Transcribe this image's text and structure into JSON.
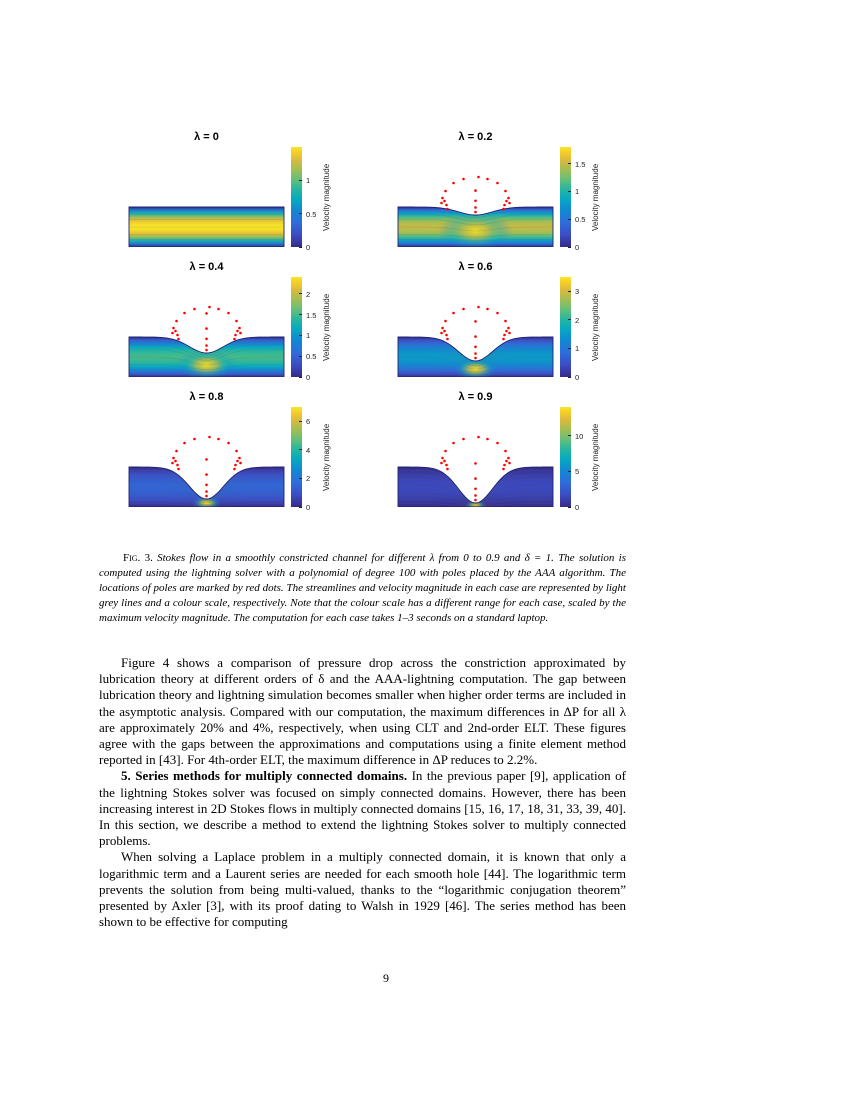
{
  "page": {
    "number": "9"
  },
  "figure": {
    "caption_lead": "Fig. 3.",
    "caption_text": " Stokes flow in a smoothly constricted channel for different λ from 0 to 0.9 and δ = 1. The solution is computed using the lightning solver with a polynomial of degree 100 with poles placed by the AAA algorithm. The locations of poles are marked by red dots. The streamlines and velocity magnitude in each case are represented by light grey lines and a colour scale, respectively. Note that the colour scale has a different range for each case, scaled by the maximum velocity magnitude. The computation for each case takes 1–3 seconds on a standard laptop."
  },
  "body": {
    "paragraphs": [
      {
        "text": "Figure 4 shows a comparison of pressure drop across the constriction approximated by lubrication theory at different orders of δ and the AAA-lightning computation. The gap between lubrication theory and lightning simulation becomes smaller when higher order terms are included in the asymptotic analysis. Compared with our computation, the maximum differences in ΔP for all λ are approximately 20% and 4%, respectively, when using CLT and 2nd-order ELT. These figures agree with the gaps between the approximations and computations using a finite element method reported in [43]. For 4th-order ELT, the maximum difference in ΔP reduces to 2.2%."
      },
      {
        "lead": "5. Series methods for multiply connected domains.",
        "text": " In the previous paper [9], application of the lightning Stokes solver was focused on simply connected domains. However, there has been increasing interest in 2D Stokes flows in multiply connected domains [15, 16, 17, 18, 31, 33, 39, 40]. In this section, we describe a method to extend the lightning Stokes solver to multiply connected problems."
      },
      {
        "text": "When solving a Laplace problem in a multiply connected domain, it is known that only a logarithmic term and a Laurent series are needed for each smooth hole [44]. The logarithmic term prevents the solution from being multi-valued, thanks to the “logarithmic conjugation theorem” presented by Axler [3], with its proof dating to Walsh in 1929 [46]. The series method has been shown to be effective for computing"
      }
    ]
  },
  "colors": {
    "pole_dot": "#ff0000",
    "boundary": "#1f2470",
    "streamline": "#666666",
    "parula": [
      [
        0,
        "#352a87"
      ],
      [
        0.12,
        "#3c4cc3"
      ],
      [
        0.25,
        "#2d6edb"
      ],
      [
        0.37,
        "#1189d1"
      ],
      [
        0.48,
        "#07a9c2"
      ],
      [
        0.58,
        "#27b79e"
      ],
      [
        0.68,
        "#68bf77"
      ],
      [
        0.78,
        "#a6be51"
      ],
      [
        0.87,
        "#d9ba3e"
      ],
      [
        0.94,
        "#f3cc2a"
      ],
      [
        1,
        "#f9e726"
      ]
    ]
  },
  "chart_data": [
    {
      "type": "heatmap",
      "title": "λ = 0",
      "lambda": 0,
      "delta": 1,
      "colorbar_label": "Velocity magnitude",
      "colorbar_ticks": [
        0,
        0.5,
        1
      ],
      "colorbar_range": [
        0,
        1.5
      ],
      "max_velocity": 1.5,
      "poles_marked": false,
      "description": "straight channel, Poiseuille flow, yellow fast core at centreline"
    },
    {
      "type": "heatmap",
      "title": "λ = 0.2",
      "lambda": 0.2,
      "delta": 1,
      "colorbar_label": "Velocity magnitude",
      "colorbar_ticks": [
        0,
        0.5,
        1,
        1.5
      ],
      "colorbar_range": [
        0,
        1.8
      ],
      "max_velocity": 1.8,
      "poles_marked": true,
      "description": "shallow smooth constriction, poles in arc above dip"
    },
    {
      "type": "heatmap",
      "title": "λ = 0.4",
      "lambda": 0.4,
      "delta": 1,
      "colorbar_label": "Velocity magnitude",
      "colorbar_ticks": [
        0,
        0.5,
        1,
        1.5,
        2
      ],
      "colorbar_range": [
        0,
        2.4
      ],
      "max_velocity": 2.4,
      "poles_marked": true,
      "description": "moderate constriction, bright spot under throat"
    },
    {
      "type": "heatmap",
      "title": "λ = 0.6",
      "lambda": 0.6,
      "delta": 1,
      "colorbar_label": "Velocity magnitude",
      "colorbar_ticks": [
        0,
        1,
        2,
        3
      ],
      "colorbar_range": [
        0,
        3.5
      ],
      "max_velocity": 3.5,
      "poles_marked": true,
      "description": "deep constriction"
    },
    {
      "type": "heatmap",
      "title": "λ = 0.8",
      "lambda": 0.8,
      "delta": 1,
      "colorbar_label": "Velocity magnitude",
      "colorbar_ticks": [
        0,
        2,
        4,
        6
      ],
      "colorbar_range": [
        0,
        7
      ],
      "max_velocity": 7,
      "poles_marked": true,
      "description": "very deep constriction, small fast region at throat"
    },
    {
      "type": "heatmap",
      "title": "λ = 0.9",
      "lambda": 0.9,
      "delta": 1,
      "colorbar_label": "Velocity magnitude",
      "colorbar_ticks": [
        0,
        5,
        10
      ],
      "colorbar_range": [
        0,
        14
      ],
      "max_velocity": 14,
      "poles_marked": true,
      "description": "near-closed constriction, tiny fast region at throat"
    }
  ]
}
